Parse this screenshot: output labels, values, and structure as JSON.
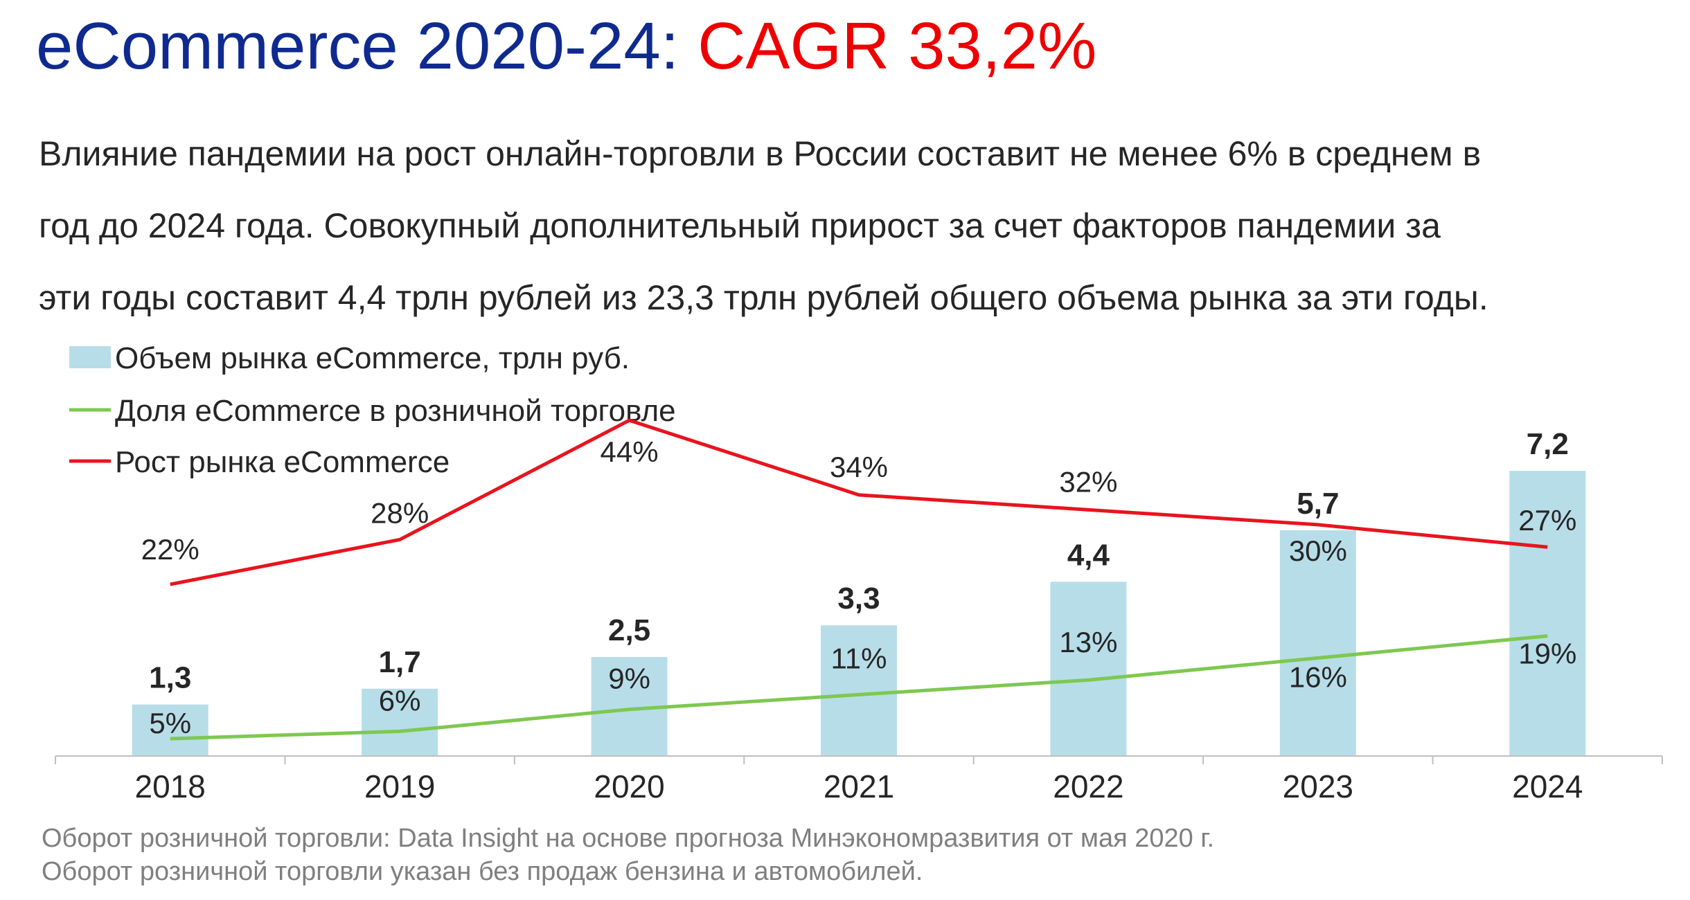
{
  "title": {
    "main": "eCommerce 2020-24:",
    "accent": "CAGR 33,2%"
  },
  "subtitle_lines": [
    "Влияние пандемии на рост онлайн-торговли в России составит не менее 6% в среднем в",
    "год до 2024 года. Совокупный дополнительный прирост за счет факторов пандемии за",
    "эти годы составит 4,4 трлн рублей из 23,3 трлн рублей общего объема рынка за эти годы."
  ],
  "colors": {
    "title_main": "#0f2a8f",
    "title_accent": "#ee0000",
    "bar": "#b7dde8",
    "share_line": "#7ec850",
    "growth_line": "#e8141e",
    "text": "#262626",
    "footnote": "#7f7f7f",
    "axis": "#bfbfbf"
  },
  "chart_data": {
    "type": "bar",
    "categories": [
      "2018",
      "2019",
      "2020",
      "2021",
      "2022",
      "2023",
      "2024"
    ],
    "legend_position": "top-left",
    "grid": false,
    "series": [
      {
        "name": "Объем рынка eCommerce, трлн руб.",
        "type": "bar",
        "values": [
          1.3,
          1.7,
          2.5,
          3.3,
          4.4,
          5.7,
          7.2
        ],
        "labels": [
          "1,3",
          "1,7",
          "2,5",
          "3,3",
          "4,4",
          "5,7",
          "7,2"
        ]
      },
      {
        "name": "Доля eCommerce в розничной торговле",
        "type": "line",
        "values": [
          5,
          6,
          9,
          11,
          13,
          16,
          19
        ],
        "labels": [
          "5%",
          "6%",
          "9%",
          "11%",
          "13%",
          "16%",
          "19%"
        ]
      },
      {
        "name": "Рост рынка eCommerce",
        "type": "line",
        "values": [
          22,
          28,
          44,
          34,
          32,
          30,
          27
        ],
        "labels": [
          "22%",
          "28%",
          "44%",
          "34%",
          "32%",
          "30%",
          "27%"
        ]
      }
    ]
  },
  "footnotes": [
    "Оборот розничной торговли: Data Insight на основе прогноза Минэкономразвития от мая 2020 г.",
    "Оборот розничной торговли указан без продаж бензина и автомобилей."
  ]
}
